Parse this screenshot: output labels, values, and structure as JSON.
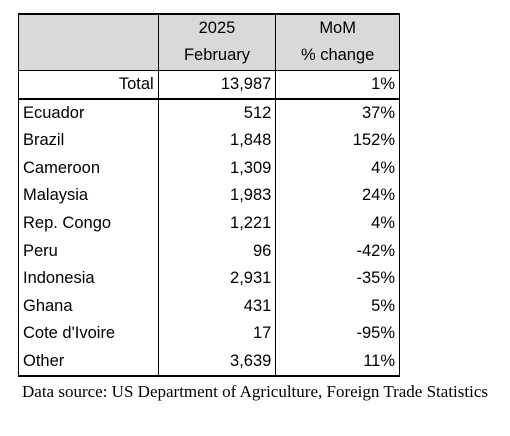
{
  "table": {
    "header": {
      "year": "2025",
      "month": "February",
      "mom_line1": "MoM",
      "mom_line2": "% change"
    },
    "total": {
      "label": "Total",
      "value": "13,987",
      "change": "1%"
    },
    "rows": [
      {
        "country": "Ecuador",
        "value": "512",
        "change": "37%"
      },
      {
        "country": "Brazil",
        "value": "1,848",
        "change": "152%"
      },
      {
        "country": "Cameroon",
        "value": "1,309",
        "change": "4%"
      },
      {
        "country": "Malaysia",
        "value": "1,983",
        "change": "24%"
      },
      {
        "country": "Rep. Congo",
        "value": "1,221",
        "change": "4%"
      },
      {
        "country": "Peru",
        "value": "96",
        "change": "-42%"
      },
      {
        "country": "Indonesia",
        "value": "2,931",
        "change": "-35%"
      },
      {
        "country": "Ghana",
        "value": "431",
        "change": "5%"
      },
      {
        "country": "Cote d'Ivoire",
        "value": "17",
        "change": "-95%"
      },
      {
        "country": "Other",
        "value": "3,639",
        "change": "11%"
      }
    ]
  },
  "source_note": "Data source: US Department of Agriculture, Foreign Trade Statistics"
}
